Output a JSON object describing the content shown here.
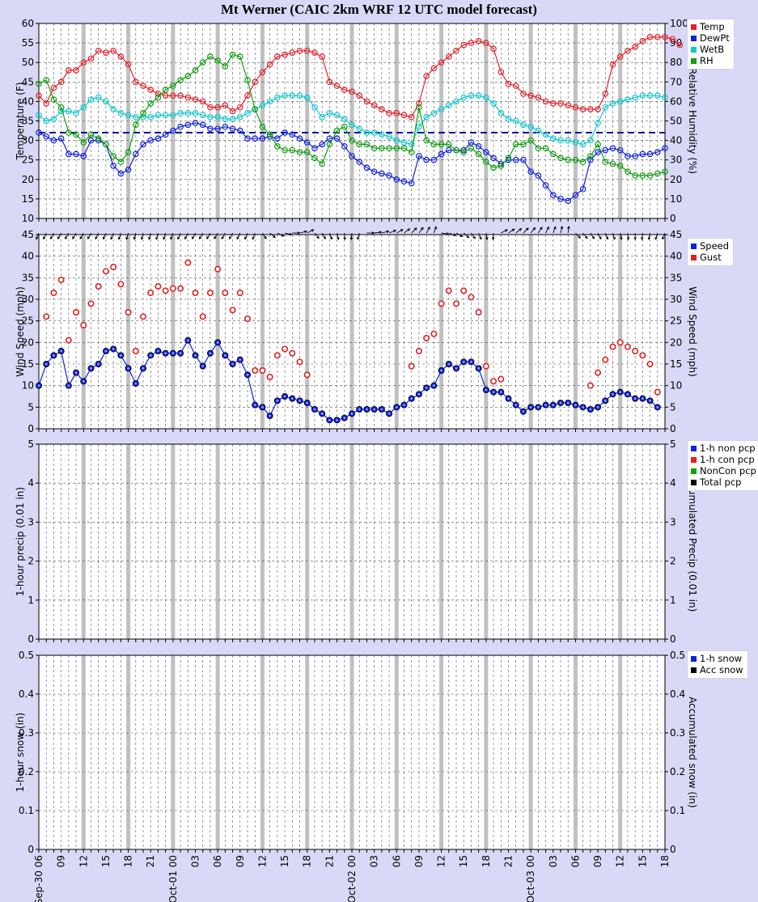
{
  "title": "Mt Werner (CAIC 2km WRF 12 UTC model forecast)",
  "colors": {
    "background": "#d9d9f7",
    "plot_background": "#ffffff",
    "temp": "#e8202a",
    "dewpt": "#1020e0",
    "wetb": "#10c8d0",
    "rh": "#10a010",
    "speed": "#1020e0",
    "gust": "#e02020",
    "freezing_line": "#0a10a0",
    "day_separator": "#c0c0c0"
  },
  "x_axis": {
    "ticks": [
      "Sep-30 06",
      "09",
      "12",
      "15",
      "18",
      "21",
      "Oct-01 00",
      "03",
      "06",
      "09",
      "12",
      "15",
      "18",
      "21",
      "Oct-02 00",
      "03",
      "06",
      "09",
      "12",
      "15",
      "18",
      "21",
      "Oct-03 00",
      "03",
      "06",
      "09",
      "12",
      "15",
      "18"
    ]
  },
  "legends": {
    "temp_panel": [
      {
        "label": "Temp",
        "icon": "red-square-icon",
        "color": "#e8202a"
      },
      {
        "label": "DewPt",
        "icon": "blue-square-icon",
        "color": "#1020e0"
      },
      {
        "label": "WetB",
        "icon": "cyan-square-icon",
        "color": "#10c8d0"
      },
      {
        "label": "RH",
        "icon": "green-square-icon",
        "color": "#10a010"
      }
    ],
    "wind_panel": [
      {
        "label": "Speed",
        "icon": "blue-square-icon",
        "color": "#1020e0"
      },
      {
        "label": "Gust",
        "icon": "red-square-icon",
        "color": "#e02020"
      }
    ],
    "precip_panel": [
      {
        "label": "1-h non pcp",
        "icon": "blue-square-icon",
        "color": "#1020e0"
      },
      {
        "label": "1-h con pcp",
        "icon": "red-square-icon",
        "color": "#e02020"
      },
      {
        "label": "NonCon pcp",
        "icon": "green-square-icon",
        "color": "#10a010"
      },
      {
        "label": "Total pcp",
        "icon": "black-square-icon",
        "color": "#000000"
      }
    ],
    "snow_panel": [
      {
        "label": "1-h snow",
        "icon": "blue-square-icon",
        "color": "#1020e0"
      },
      {
        "label": "Acc snow",
        "icon": "black-square-icon",
        "color": "#000000"
      }
    ]
  },
  "chart_data": [
    {
      "type": "line",
      "panel": "temperature",
      "ylabel": "Temperature (F)",
      "y2label": "Relative Humidity (%)",
      "ylim": [
        10,
        60
      ],
      "y2lim": [
        0,
        100
      ],
      "yticks": [
        10,
        15,
        20,
        25,
        30,
        35,
        40,
        45,
        50,
        55,
        60
      ],
      "y2ticks": [
        0,
        10,
        20,
        30,
        40,
        50,
        60,
        70,
        80,
        90,
        100
      ],
      "x_start_hour": 6,
      "x_end_hour": 90,
      "freezing_line": 32,
      "series": [
        {
          "name": "Temp",
          "axis": "left",
          "color": "#e8202a",
          "values": [
            41.5,
            39.5,
            43.5,
            45,
            48,
            48,
            50,
            51,
            53,
            52.5,
            53,
            51.5,
            49.5,
            45,
            44,
            43,
            42,
            41.5,
            41.5,
            41.5,
            41,
            40.5,
            40,
            38.5,
            38.5,
            39,
            37.5,
            38.5,
            41.5,
            45,
            47.5,
            49.5,
            51.5,
            52,
            52.5,
            53,
            53,
            52.5,
            51.5,
            45,
            44,
            43,
            42.5,
            41.5,
            40,
            39,
            38,
            37,
            37,
            36.5,
            36,
            39.5,
            46.5,
            48.5,
            50,
            51.5,
            53,
            54.5,
            55,
            55.5,
            55,
            53.5,
            47.5,
            44.5,
            44,
            42,
            41.5,
            41,
            40,
            39.5,
            39.5,
            39,
            38.5,
            38,
            38,
            38,
            42,
            49.5,
            51.5,
            53,
            54,
            55.5,
            56.5,
            56.5,
            56.5,
            56,
            54.5
          ]
        },
        {
          "name": "DewPt",
          "axis": "left",
          "color": "#1020e0",
          "values": [
            32,
            31,
            30,
            30.5,
            26.5,
            26.5,
            26,
            30,
            30,
            29,
            23.5,
            21.5,
            22.5,
            26.5,
            29,
            30,
            30.5,
            31.5,
            32.5,
            33.5,
            34,
            34.5,
            34,
            33,
            33,
            33.5,
            33,
            32.5,
            30.5,
            30.5,
            30.5,
            31,
            30.5,
            32,
            31.5,
            30.5,
            29.5,
            28,
            29,
            30.5,
            30.5,
            28.5,
            26,
            24.5,
            23,
            22,
            21.5,
            21,
            20,
            19.5,
            19,
            26,
            25,
            25,
            26.5,
            27.5,
            27.5,
            27.5,
            29.5,
            28.5,
            27,
            25.5,
            24,
            25,
            25,
            25,
            22,
            21,
            18.5,
            16,
            15,
            14.5,
            16,
            17.5,
            25,
            27,
            27.5,
            28,
            27.5,
            26,
            26,
            26.5,
            26.5,
            27,
            28
          ]
        },
        {
          "name": "WetB",
          "axis": "left",
          "color": "#10c8d0",
          "values": [
            36.5,
            35,
            35.5,
            37.5,
            37.5,
            37,
            38.5,
            40.5,
            41,
            40,
            38,
            37,
            36.5,
            36,
            36,
            36,
            36.5,
            36.5,
            36.5,
            37,
            37,
            37,
            36.5,
            36,
            36,
            35.5,
            35.5,
            36,
            37,
            38,
            39,
            40,
            41,
            41.5,
            41.5,
            41.5,
            41,
            38.5,
            36,
            37,
            36.5,
            35.5,
            34,
            33,
            32,
            32,
            31.5,
            31,
            30,
            29.5,
            29,
            33.5,
            36,
            37,
            38,
            39,
            40,
            41,
            41.5,
            41.5,
            41,
            39.5,
            37,
            35.5,
            35,
            34,
            33.5,
            32.5,
            31.5,
            30.5,
            30,
            30,
            29.5,
            29,
            30,
            34.5,
            38.5,
            39.5,
            40,
            40.5,
            41,
            41.5,
            41.5,
            41.5,
            41
          ]
        },
        {
          "name": "RH",
          "axis": "right",
          "color": "#10a010",
          "values": [
            69,
            71,
            61,
            57,
            44,
            43,
            39,
            43,
            41,
            38,
            32,
            29,
            34,
            48,
            54,
            59,
            62,
            66,
            68,
            71,
            73,
            76,
            80,
            83,
            81,
            78,
            84,
            83,
            71,
            56,
            47,
            43,
            37,
            35,
            35,
            34,
            34,
            31,
            28,
            38,
            45,
            47,
            40,
            38,
            38,
            36,
            36,
            36,
            36,
            36,
            34,
            57,
            40,
            38,
            38,
            38,
            35,
            34,
            36,
            33,
            29,
            26,
            27,
            31,
            38,
            38,
            40,
            36,
            36,
            33,
            31,
            30,
            30,
            29,
            32,
            38,
            29,
            28,
            27,
            24,
            22,
            22,
            22,
            23,
            24
          ]
        }
      ]
    },
    {
      "type": "scatter",
      "panel": "wind",
      "ylabel": "Wind Speed (mph)",
      "y2label": "Wind Speed (mph)",
      "ylim": [
        0,
        45
      ],
      "yticks": [
        0,
        5,
        10,
        15,
        20,
        25,
        30,
        35,
        40,
        45
      ],
      "x_start_hour": 6,
      "x_end_hour": 90,
      "series": [
        {
          "name": "Speed",
          "color": "#1020e0",
          "line": true,
          "values": [
            10,
            15,
            17,
            18,
            10,
            13,
            11,
            14,
            15,
            18,
            18.5,
            17,
            14,
            10.5,
            14,
            17,
            18,
            17.5,
            17.5,
            17.5,
            20.5,
            17,
            14.5,
            17.5,
            20,
            17,
            15,
            16,
            12.5,
            5.5,
            5,
            3,
            6.5,
            7.5,
            7,
            6.5,
            6,
            4.5,
            3.5,
            2,
            2,
            2.5,
            3.5,
            4.5,
            4.5,
            4.5,
            4.5,
            3.5,
            5,
            5.5,
            7,
            8,
            9.5,
            10,
            13.5,
            15,
            14,
            15.5,
            15.5,
            14,
            9,
            8.5,
            8.5,
            7,
            5.5,
            4,
            5,
            5,
            5.5,
            5.5,
            6,
            6,
            5.5,
            5,
            4.5,
            5,
            6.5,
            8,
            8.5,
            8,
            7,
            7,
            6.5,
            5
          ]
        },
        {
          "name": "Gust",
          "color": "#e02020",
          "line": false,
          "values": [
            null,
            26,
            31.5,
            34.5,
            20.5,
            27,
            24,
            29,
            33,
            36.5,
            37.5,
            33.5,
            27,
            18,
            26,
            31.5,
            33,
            32,
            32.5,
            32.5,
            38.5,
            31.5,
            26,
            31.5,
            37,
            31.5,
            27.5,
            31.5,
            25.5,
            13.5,
            13.5,
            12,
            17,
            18.5,
            17.5,
            15.5,
            12.5,
            null,
            null,
            null,
            null,
            null,
            null,
            null,
            null,
            null,
            null,
            null,
            null,
            null,
            14.5,
            18,
            21,
            22,
            29,
            32,
            29,
            32,
            30.5,
            27,
            14.5,
            11,
            11.5,
            null,
            null,
            null,
            null,
            null,
            null,
            null,
            null,
            null,
            null,
            null,
            10,
            13,
            16,
            19,
            20,
            19,
            18,
            17,
            15,
            8.5
          ]
        }
      ],
      "wind_barbs": "direction arrows along top edge"
    },
    {
      "type": "line",
      "panel": "precip",
      "ylabel": "1-hour precip (0.01 in)",
      "y2label": "Accumulated Precip (0.01 in)",
      "ylim": [
        0,
        5
      ],
      "yticks": [
        0,
        1,
        2,
        3,
        4,
        5
      ],
      "series": [
        {
          "name": "1-h non pcp",
          "values": []
        },
        {
          "name": "1-h con pcp",
          "values": []
        },
        {
          "name": "NonCon pcp",
          "values": []
        },
        {
          "name": "Total pcp",
          "values": []
        }
      ]
    },
    {
      "type": "line",
      "panel": "snow",
      "ylabel": "1-hour snow (in)",
      "y2label": "Accumulated snow (in)",
      "ylim": [
        0,
        0.5
      ],
      "yticks": [
        "0",
        "0.1",
        "0.2",
        "0.3",
        "0.4",
        "0.5"
      ],
      "series": [
        {
          "name": "1-h snow",
          "values": []
        },
        {
          "name": "Acc snow",
          "values": []
        }
      ]
    }
  ]
}
